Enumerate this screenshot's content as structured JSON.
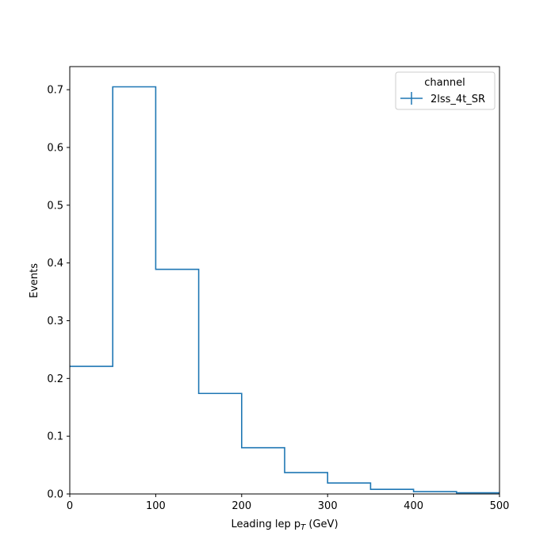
{
  "chart_data": {
    "type": "histogram-step",
    "xlabel": "Leading lep p",
    "xlabel_subscript": "T",
    "xlabel_unit": " (GeV)",
    "ylabel": "Events",
    "xlim": [
      0,
      500
    ],
    "ylim": [
      0,
      0.74
    ],
    "grid": false,
    "x_ticks": [
      0,
      100,
      200,
      300,
      400,
      500
    ],
    "x_tick_labels": [
      "0",
      "100",
      "200",
      "300",
      "400",
      "500"
    ],
    "y_ticks": [
      0.0,
      0.1,
      0.2,
      0.3,
      0.4,
      0.5,
      0.6,
      0.7
    ],
    "y_tick_labels": [
      "0.0",
      "0.1",
      "0.2",
      "0.3",
      "0.4",
      "0.5",
      "0.6",
      "0.7"
    ],
    "bin_edges": [
      0,
      50,
      100,
      150,
      200,
      250,
      300,
      350,
      400,
      450,
      500
    ],
    "series": [
      {
        "name": "2lss_4t_SR",
        "color": "#1f77b4",
        "values": [
          0.221,
          0.705,
          0.389,
          0.174,
          0.08,
          0.037,
          0.019,
          0.008,
          0.004,
          0.002
        ]
      }
    ],
    "legend": {
      "title": "channel",
      "placement": "top-right"
    }
  }
}
